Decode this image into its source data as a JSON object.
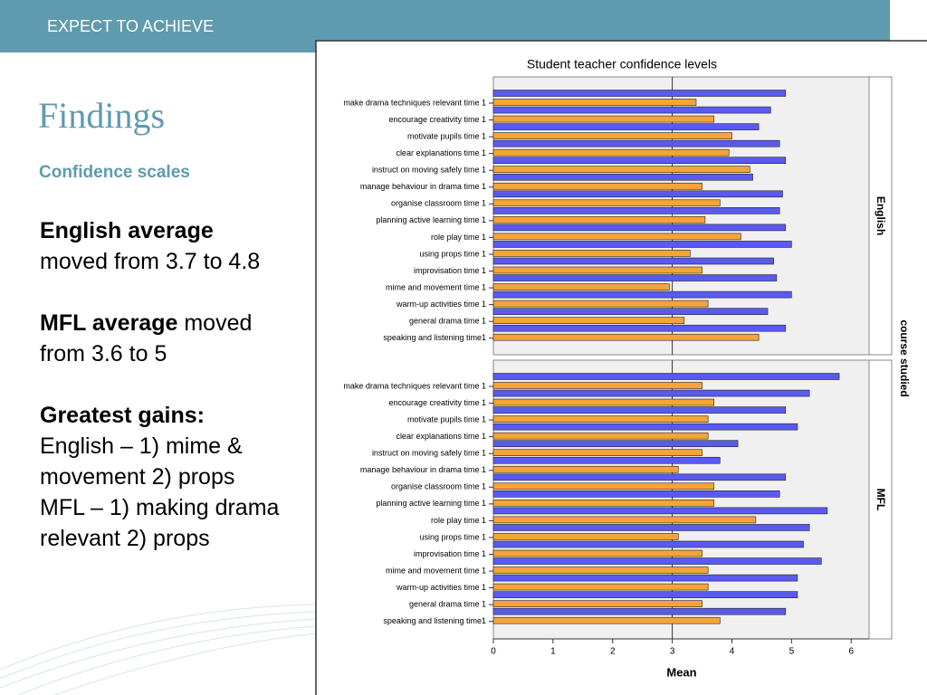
{
  "header": "EXPECT TO ACHIEVE",
  "title": "Findings",
  "subtitle": "Confidence scales",
  "body": [
    {
      "lines": [
        [
          {
            "text": "English average",
            "bold": true
          }
        ],
        [
          {
            "text": "moved from 3.7 to 4.8"
          }
        ]
      ]
    },
    {
      "lines": [
        [
          {
            "text": "MFL average",
            "bold": true
          },
          {
            "text": " moved"
          }
        ],
        [
          {
            "text": "from 3.6 to 5"
          }
        ]
      ]
    },
    {
      "lines": [
        [
          {
            "text": "Greatest gains:",
            "bold": true
          }
        ],
        [
          {
            "text": "English – 1) mime &"
          }
        ],
        [
          {
            "text": "movement 2) props"
          }
        ],
        [
          {
            "text": "MFL – 1) making drama"
          }
        ],
        [
          {
            "text": "relevant 2) props"
          }
        ]
      ]
    }
  ],
  "chart_data": {
    "type": "bar",
    "orientation": "horizontal",
    "title": "Student teacher confidence levels",
    "xlabel": "Mean",
    "facet_label": "course studied",
    "categories": [
      "make drama techniques relevant time 1",
      "encourage creativity time 1",
      "motivate pupils time 1",
      "clear explanations time 1",
      "instruct on moving safely time 1",
      "manage behaviour in drama time 1",
      "organise classroom time 1",
      "planning active learning time 1",
      "role play time 1",
      "using props time 1",
      "improvisation time 1",
      "mime and movement time 1",
      "warm-up activities time 1",
      "general drama time 1",
      "speaking and listening time1"
    ],
    "xlim": [
      0,
      6.3
    ],
    "xticks": [
      0,
      1,
      2,
      3,
      4,
      5,
      6
    ],
    "reference_line": 3,
    "panels": [
      {
        "name": "English",
        "series": [
          {
            "color": "#5a5af0",
            "values": [
              4.9,
              4.65,
              4.45,
              4.8,
              4.9,
              4.35,
              4.85,
              4.8,
              4.9,
              5.0,
              4.7,
              4.75,
              5.0,
              4.6,
              4.9
            ]
          },
          {
            "color": "#f5a43a",
            "values": [
              3.4,
              3.7,
              4.0,
              3.95,
              4.3,
              3.5,
              3.8,
              3.55,
              4.15,
              3.3,
              3.5,
              2.95,
              3.6,
              3.2,
              4.45
            ]
          }
        ]
      },
      {
        "name": "MFL",
        "series": [
          {
            "color": "#5a5af0",
            "values": [
              5.8,
              5.3,
              4.9,
              5.1,
              4.1,
              3.8,
              4.9,
              4.8,
              5.6,
              5.3,
              5.2,
              5.5,
              5.1,
              5.1,
              4.9
            ]
          },
          {
            "color": "#f5a43a",
            "values": [
              3.5,
              3.7,
              3.6,
              3.6,
              3.5,
              3.1,
              3.7,
              3.7,
              4.4,
              3.1,
              3.5,
              3.6,
              3.6,
              3.5,
              3.8
            ]
          }
        ]
      }
    ]
  }
}
